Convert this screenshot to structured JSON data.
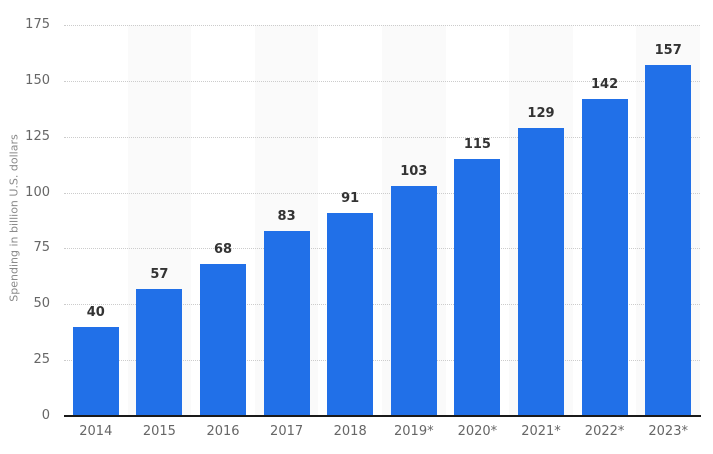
{
  "chart_data": {
    "type": "bar",
    "title": "",
    "categories": [
      "2014",
      "2015",
      "2016",
      "2017",
      "2018",
      "2019*",
      "2020*",
      "2021*",
      "2022*",
      "2023*"
    ],
    "values": [
      40,
      57,
      68,
      83,
      91,
      103,
      115,
      129,
      142,
      157
    ],
    "xlabel": "",
    "ylabel": "Spending in billion U.S. dollars",
    "ylim": [
      0,
      175
    ],
    "yticks": [
      0,
      25,
      50,
      75,
      100,
      125,
      150,
      175
    ],
    "grid": "horizontal-dotted",
    "legend_position": "none",
    "alternating_column_bands": true,
    "colors": {
      "bar": "#2170e8",
      "band": "#fafafa",
      "gridline": "#cccccc",
      "baseline": "#1a1a1a",
      "value_label": "#333333",
      "tick_label": "#666666",
      "axis_title": "#8a8a8a",
      "background": "#ffffff"
    }
  }
}
